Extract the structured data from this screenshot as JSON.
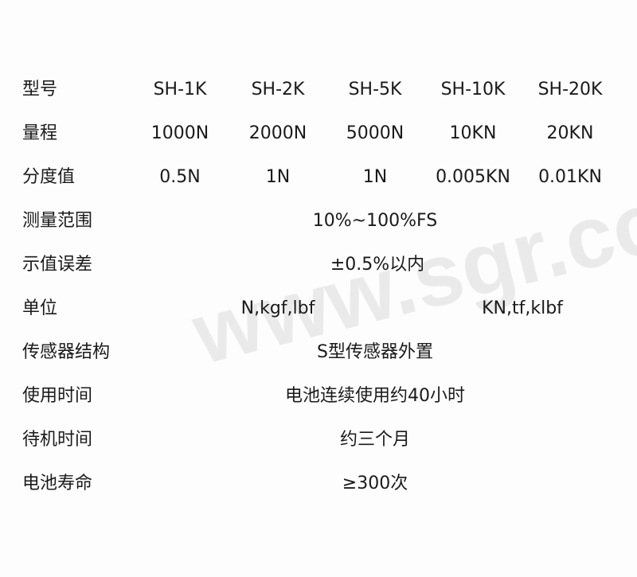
{
  "watermark": "www.sgr.com.cn",
  "rows": [
    {
      "label": "型号",
      "values": [
        "SH-1K",
        "SH-2K",
        "SH-5K",
        "SH-10K",
        "SH-20K"
      ]
    },
    {
      "label": "量程",
      "values": [
        "1000N",
        "2000N",
        "5000N",
        "10KN",
        "20KN"
      ]
    },
    {
      "label": "分度值",
      "values": [
        "0.5N",
        "1N",
        "1N",
        "0.005KN",
        "0.01KN"
      ]
    },
    {
      "label": "测量范围",
      "value": "10%~100%FS"
    },
    {
      "label": "示值误差",
      "value": "±0.5%以内"
    },
    {
      "label": "单位",
      "values": [
        "N,kgf,lbf",
        "KN,tf,klbf"
      ]
    },
    {
      "label": "传感器结构",
      "value": "S型传感器外置"
    },
    {
      "label": "使用时间",
      "value": "电池连续使用约40小时"
    },
    {
      "label": "待机时间",
      "value": "约三个月"
    },
    {
      "label": "电池寿命",
      "value": "≥300次"
    }
  ]
}
